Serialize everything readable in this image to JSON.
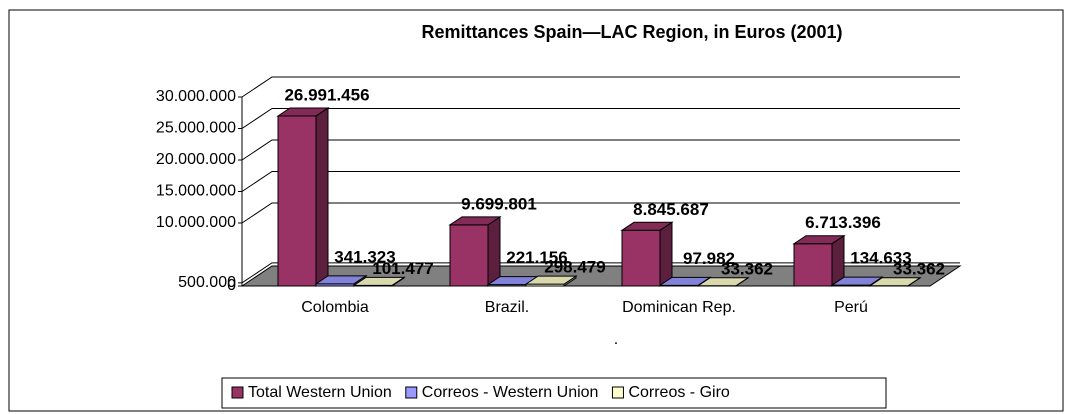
{
  "chart_data": {
    "type": "bar3d",
    "title": "Remittances Spain—LAC Region, in Euros (2001)",
    "categories": [
      "Colombia",
      "Brazil.",
      "Dominican Rep.",
      "Perú"
    ],
    "annotation": ".",
    "series": [
      {
        "name": "Total Western Union",
        "color": "#993366",
        "values": [
          26991456,
          9699801,
          8845687,
          6713396
        ],
        "value_labels": [
          "26.991.456",
          "9.699.801",
          "8.845.687",
          "6.713.396"
        ]
      },
      {
        "name": "Correos - Western Union",
        "color": "#9999ff",
        "values": [
          341323,
          221156,
          97982,
          134633
        ],
        "value_labels": [
          "341.323",
          "221.156",
          "97.982",
          "134.633"
        ]
      },
      {
        "name": "Correos - Giro",
        "color": "#ffffcc",
        "values": [
          101477,
          298479,
          33362,
          33362
        ],
        "value_labels": [
          "101.477",
          "298.479",
          "33.362",
          "33.362"
        ]
      }
    ],
    "ylim": [
      0,
      30000000
    ],
    "yticks": [
      0,
      {
        "value": 500000,
        "label": "500.000"
      },
      {
        "value": 10000000,
        "label": "10.000.000"
      },
      {
        "value": 15000000,
        "label": "15.000.000"
      },
      {
        "value": 20000000,
        "label": "20.000.000"
      },
      {
        "value": 25000000,
        "label": "25.000.000"
      },
      {
        "value": 30000000,
        "label": "30.000.000"
      }
    ],
    "grid": true,
    "legend": "bottom"
  }
}
